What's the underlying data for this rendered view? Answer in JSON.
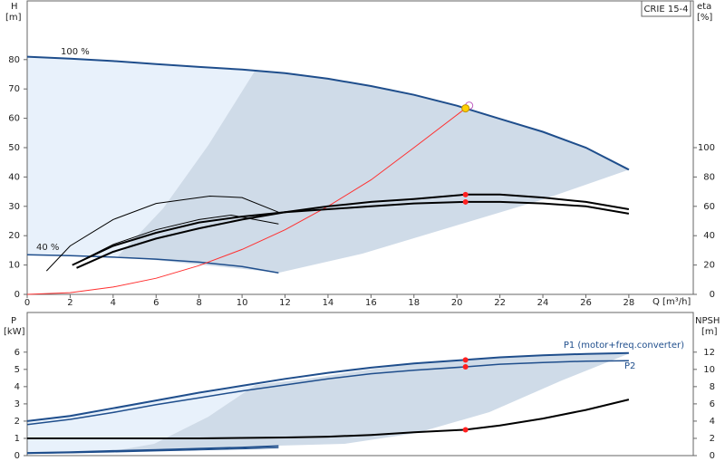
{
  "chart_data": [
    {
      "type": "line",
      "title": "CRIE 15-4",
      "x_label": "Q [m³/h]",
      "y_label": "H",
      "y_unit": "[m]",
      "y2_label": "eta",
      "y2_unit": "[%]",
      "xlim": [
        0,
        31
      ],
      "xticks": [
        0,
        2,
        4,
        6,
        8,
        10,
        12,
        14,
        16,
        18,
        20,
        22,
        24,
        26,
        28
      ],
      "ylim": [
        0,
        100
      ],
      "yticks": [
        0,
        10,
        20,
        30,
        40,
        50,
        60,
        70,
        80
      ],
      "y2lim": [
        0,
        200
      ],
      "y2ticks": [
        0,
        20,
        40,
        60,
        80,
        100
      ],
      "series": [
        {
          "name": "100 %",
          "color": "#1f4e8c",
          "width": 2,
          "x": [
            0,
            2,
            4,
            6,
            8,
            10,
            12,
            14,
            16,
            18,
            20,
            22,
            24,
            26,
            28
          ],
          "values": [
            81,
            80.3,
            79.5,
            78.5,
            77.5,
            76.6,
            75.4,
            73.5,
            71,
            68,
            64.3,
            59.8,
            55.4,
            50,
            42.5
          ]
        },
        {
          "name": "40 %",
          "color": "#1f4e8c",
          "width": 1.5,
          "x": [
            0,
            2,
            4,
            6,
            8,
            10,
            11.7
          ],
          "values": [
            13.5,
            13.2,
            12.7,
            12,
            11,
            9.5,
            7.3
          ]
        },
        {
          "color": "#ff3030",
          "width": 1,
          "x": [
            0,
            2,
            4,
            6,
            8,
            10,
            12,
            14,
            16,
            18,
            20.4
          ],
          "values": [
            0,
            0.6,
            2.5,
            5.5,
            9.8,
            15.3,
            22,
            30,
            39,
            50,
            63.4
          ]
        },
        {
          "color": "#000000",
          "width": 2,
          "axis": "y2",
          "x": [
            2.3,
            4,
            6,
            8,
            10,
            12,
            14,
            16,
            18,
            20.4,
            22,
            24,
            26,
            28
          ],
          "values": [
            18,
            29,
            38,
            45,
            51,
            56,
            60,
            63,
            65,
            68,
            68,
            66,
            63,
            58
          ]
        },
        {
          "color": "#000000",
          "width": 2,
          "axis": "y2",
          "x": [
            2.1,
            4,
            6,
            8,
            10,
            12,
            14,
            16,
            18,
            20.4,
            22,
            24,
            26,
            28
          ],
          "values": [
            20,
            33,
            42,
            49,
            53,
            56,
            58,
            60,
            62,
            63,
            63,
            62,
            60,
            55
          ]
        },
        {
          "color": "#000000",
          "width": 1,
          "axis": "y2",
          "x": [
            0.9,
            2,
            4,
            6,
            8.5,
            10,
            11.7
          ],
          "values": [
            16,
            33,
            51,
            62,
            67,
            66,
            56
          ]
        },
        {
          "color": "#000000",
          "width": 1,
          "axis": "y2",
          "x": [
            2.1,
            4,
            6,
            8,
            9.5,
            11.7
          ],
          "values": [
            20,
            34,
            44,
            51,
            54,
            48
          ]
        }
      ],
      "duty_point": {
        "x": 20.4,
        "values": [
          63.4
        ],
        "y2_values": [
          68,
          63
        ]
      }
    },
    {
      "type": "line",
      "y_label": "P",
      "y_unit": "[kW]",
      "y2_label": "NPSH",
      "y2_unit": "[m]",
      "xlim": [
        0,
        31
      ],
      "ylim": [
        0,
        8.3
      ],
      "yticks": [
        0,
        1,
        2,
        3,
        4,
        5,
        6
      ],
      "y2lim": [
        0,
        16.6
      ],
      "y2ticks": [
        0,
        2,
        4,
        6,
        8,
        10,
        12
      ],
      "series": [
        {
          "name": "P1 (motor+freq.converter)",
          "color": "#1f4e8c",
          "width": 2,
          "x": [
            0,
            2,
            4,
            6,
            8,
            10,
            12,
            14,
            16,
            18,
            20.4,
            22,
            24,
            26,
            28
          ],
          "values": [
            2.0,
            2.3,
            2.75,
            3.2,
            3.65,
            4.05,
            4.45,
            4.8,
            5.1,
            5.35,
            5.55,
            5.7,
            5.82,
            5.9,
            5.95
          ]
        },
        {
          "name": "P2",
          "color": "#1f4e8c",
          "width": 1.5,
          "x": [
            0,
            2,
            4,
            6,
            8,
            10,
            12,
            14,
            16,
            18,
            20.4,
            22,
            24,
            26,
            28
          ],
          "values": [
            1.8,
            2.1,
            2.5,
            2.95,
            3.35,
            3.75,
            4.1,
            4.45,
            4.75,
            4.95,
            5.15,
            5.3,
            5.4,
            5.48,
            5.5
          ]
        },
        {
          "color": "#1f4e8c",
          "width": 2,
          "x": [
            0,
            2,
            4,
            6,
            8,
            10,
            11.7
          ],
          "values": [
            0.15,
            0.2,
            0.27,
            0.33,
            0.4,
            0.47,
            0.55
          ]
        },
        {
          "color": "#1f4e8c",
          "width": 1,
          "x": [
            0,
            2,
            4,
            6,
            8,
            10,
            11.7
          ],
          "values": [
            0.12,
            0.16,
            0.21,
            0.27,
            0.33,
            0.39,
            0.45
          ]
        },
        {
          "color": "#000000",
          "width": 2,
          "axis": "y2",
          "x": [
            0,
            4,
            8,
            12,
            14,
            16,
            18,
            20.4,
            22,
            24,
            26,
            28
          ],
          "values": [
            2.0,
            2.0,
            2.0,
            2.1,
            2.2,
            2.4,
            2.7,
            3.0,
            3.5,
            4.3,
            5.3,
            6.5
          ]
        }
      ],
      "duty_point": {
        "x": 20.4,
        "values": [
          5.55,
          5.15
        ],
        "y2_values": [
          3.0
        ]
      }
    }
  ]
}
